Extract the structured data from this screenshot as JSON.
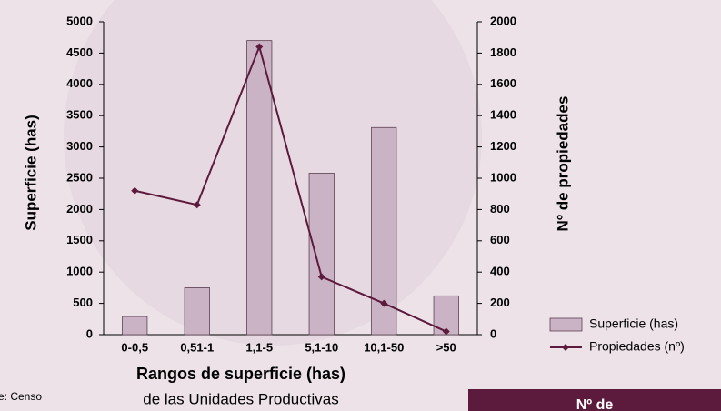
{
  "chart_data": {
    "type": "bar",
    "categories": [
      "0-0,5",
      "0,51-1",
      "1,1-5",
      "5,1-10",
      "10,1-50",
      ">50"
    ],
    "series": [
      {
        "name": "Superficie (has)",
        "type": "bar",
        "color": "#cbb3c6",
        "values": [
          290,
          750,
          4700,
          2580,
          3310,
          620
        ]
      },
      {
        "name": "Propiedades (nº)",
        "type": "line",
        "axis": "y2",
        "color": "#5c1a3c",
        "values": [
          920,
          830,
          1840,
          370,
          200,
          20
        ]
      }
    ],
    "ylim": [
      0,
      5000
    ],
    "yticks": [
      0,
      500,
      1000,
      1500,
      2000,
      2500,
      3000,
      3500,
      4000,
      4500,
      5000
    ],
    "y2lim": [
      0,
      2000
    ],
    "y2ticks": [
      0,
      200,
      400,
      600,
      800,
      1000,
      1200,
      1400,
      1600,
      1800,
      2000
    ],
    "x_label": "Rangos de superficie (has)",
    "y_label": "Superficie (has)",
    "y2_label": "Nº de propiedades",
    "subtitle": "de las Unidades Productivas",
    "legend": "lower right"
  },
  "source_fragment": "e: Censo",
  "box_label": "Nº de"
}
